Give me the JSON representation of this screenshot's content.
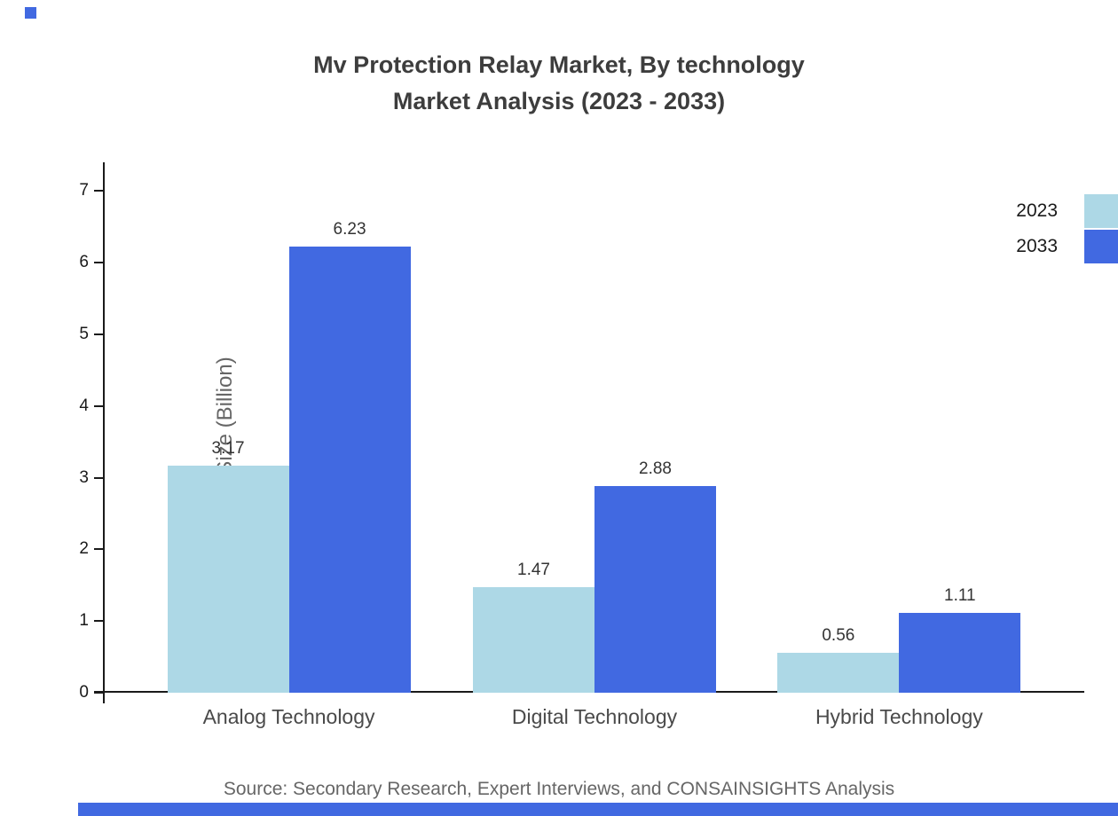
{
  "page": {
    "title_line1": "Mv Protection Relay Market, By technology",
    "title_line2": "Market Analysis (2023 - 2033)",
    "source": "Source: Secondary Research, Expert Interviews, and CONSAINSIGHTS Analysis"
  },
  "accent_color": "#4169e1",
  "chart_data": {
    "type": "bar",
    "title": "Mv Protection Relay Market, By technology Market Analysis (2023 - 2033)",
    "categories": [
      "Analog Technology",
      "Digital Technology",
      "Hybrid Technology"
    ],
    "series": [
      {
        "name": "2023",
        "color": "#add8e6",
        "values": [
          3.17,
          1.47,
          0.56
        ]
      },
      {
        "name": "2033",
        "color": "#4169e1",
        "values": [
          6.23,
          2.88,
          1.11
        ]
      }
    ],
    "xlabel": "",
    "ylabel": "Market Size (Billion)",
    "ylim": [
      0,
      7.4
    ],
    "yticks": [
      0,
      1,
      2,
      3,
      4,
      5,
      6,
      7
    ],
    "grid": false,
    "legend_position": "top-right",
    "value_labels": true
  }
}
